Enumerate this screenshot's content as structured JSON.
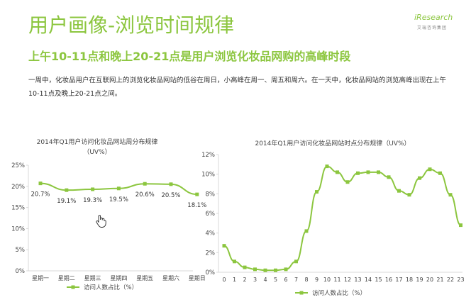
{
  "header": {
    "title": "用户画像-浏览时间规律",
    "subtitle": "上午10-11点和晚上20-21点是用户浏览化妆品网购的高峰时段",
    "description": "一周中，化妆品用户在互联网上的浏览化妆品网站的低谷在周日，小高峰在周一、周五和周六。在一天中，化妆品网站的浏览高峰出现在上午10-11点及晚上20-21点之间。"
  },
  "logo": {
    "name": "iResearch",
    "sub": "艾瑞咨询集团"
  },
  "colors": {
    "accent": "#8cc63f",
    "grid": "#d8d8d8"
  },
  "cursor_icon": "hand-pointer-icon",
  "chart_data": [
    {
      "type": "line",
      "title": "2014年Q1用户访问化妆品网站周分布规律",
      "subtitle": "（UV%）",
      "categories": [
        "星期一",
        "星期二",
        "星期三",
        "星期四",
        "星期五",
        "星期六",
        "星期日"
      ],
      "series": [
        {
          "name": "访问人数占比（%）",
          "values": [
            20.7,
            19.1,
            19.3,
            19.5,
            20.6,
            20.5,
            18.1
          ]
        }
      ],
      "data_labels": [
        "20.7%",
        "19.1%",
        "19.3%",
        "19.5%",
        "20.6%",
        "20.5%",
        "18.1%"
      ],
      "y_ticks": [
        "0%",
        "5%",
        "10%",
        "15%",
        "20%",
        "25%"
      ],
      "ylim": [
        0,
        25
      ],
      "grid": false,
      "legend": "bottom"
    },
    {
      "type": "line",
      "title": "2014年Q1用户访问化妆品网站时点分布规律（UV%）",
      "categories": [
        "0",
        "1",
        "2",
        "3",
        "4",
        "5",
        "6",
        "7",
        "8",
        "9",
        "10",
        "11",
        "12",
        "13",
        "14",
        "15",
        "16",
        "17",
        "18",
        "19",
        "20",
        "21",
        "22",
        "23"
      ],
      "series": [
        {
          "name": "访问人数占比（%）",
          "values": [
            2.7,
            1.1,
            0.5,
            0.3,
            0.2,
            0.2,
            0.3,
            1.1,
            4.2,
            8.2,
            10.8,
            10.2,
            9.2,
            10.1,
            10.2,
            10.2,
            9.7,
            8.3,
            7.9,
            9.6,
            10.5,
            10.1,
            7.9,
            4.8
          ]
        }
      ],
      "y_ticks": [
        "0%",
        "2%",
        "4%",
        "6%",
        "8%",
        "10%",
        "12%"
      ],
      "ylim": [
        0,
        12
      ],
      "grid": false,
      "legend": "bottom"
    }
  ]
}
